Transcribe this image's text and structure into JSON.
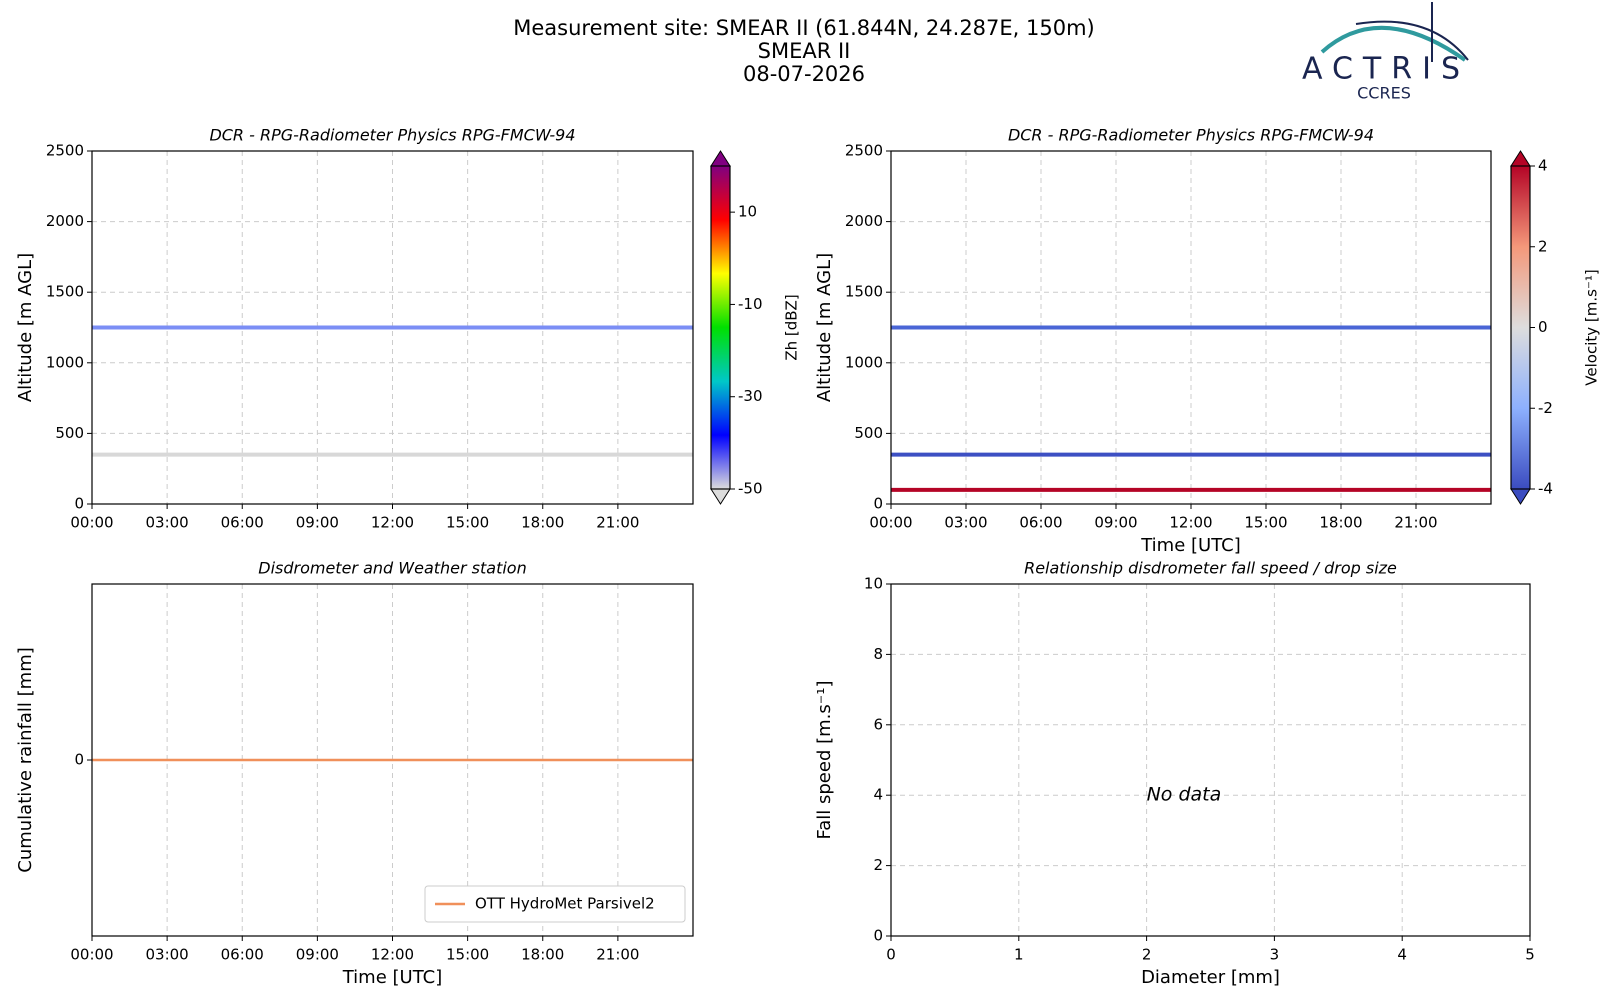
{
  "header": {
    "lines": [
      "Measurement site: SMEAR II (61.844N, 24.287E, 150m)",
      "SMEAR II",
      "08-07-2026"
    ]
  },
  "logo": {
    "name": "ACTRIS",
    "sub": "CCRES"
  },
  "chart_data": [
    {
      "type": "heatmap",
      "title": "DCR - RPG-Radiometer Physics RPG-FMCW-94",
      "ylabel": "Altitude [m AGL]",
      "xlim": [
        0,
        24
      ],
      "xticks": [
        {
          "value": 0,
          "label": "00:00"
        },
        {
          "value": 3,
          "label": "03:00"
        },
        {
          "value": 6,
          "label": "06:00"
        },
        {
          "value": 9,
          "label": "09:00"
        },
        {
          "value": 12,
          "label": "12:00"
        },
        {
          "value": 15,
          "label": "15:00"
        },
        {
          "value": 18,
          "label": "18:00"
        },
        {
          "value": 21,
          "label": "21:00"
        }
      ],
      "ylim": [
        0,
        2500
      ],
      "yticks": [
        0,
        500,
        1000,
        1500,
        2000,
        2500
      ],
      "grid": true,
      "layers": [
        {
          "y": 1250,
          "color": "#7b8ef5"
        },
        {
          "y": 350,
          "color": "#d8d8d8"
        }
      ],
      "colorbar": {
        "label": "Zh [dBZ]",
        "lim": [
          -50,
          20
        ],
        "ticks": [
          -50,
          -30,
          -10,
          10
        ],
        "colormap": [
          "#dcdcdc",
          "#0000ff",
          "#00c8c8",
          "#00e000",
          "#ffff00",
          "#ff0000",
          "#800080"
        ]
      }
    },
    {
      "type": "heatmap",
      "title": "DCR - RPG-Radiometer Physics RPG-FMCW-94",
      "ylabel": "Altitude [m AGL]",
      "xlabel": "Time [UTC]",
      "xlim": [
        0,
        24
      ],
      "xticks": [
        {
          "value": 0,
          "label": "00:00"
        },
        {
          "value": 3,
          "label": "03:00"
        },
        {
          "value": 6,
          "label": "06:00"
        },
        {
          "value": 9,
          "label": "09:00"
        },
        {
          "value": 12,
          "label": "12:00"
        },
        {
          "value": 15,
          "label": "15:00"
        },
        {
          "value": 18,
          "label": "18:00"
        },
        {
          "value": 21,
          "label": "21:00"
        }
      ],
      "ylim": [
        0,
        2500
      ],
      "yticks": [
        0,
        500,
        1000,
        1500,
        2000,
        2500
      ],
      "grid": true,
      "layers": [
        {
          "y": 1250,
          "color": "#4a66d6"
        },
        {
          "y": 350,
          "color": "#3d50c3"
        },
        {
          "y": 100,
          "color": "#b40426"
        }
      ],
      "colorbar": {
        "label": "Velocity [m.s⁻¹]",
        "lim": [
          -4,
          4
        ],
        "ticks": [
          -4,
          -2,
          0,
          2,
          4
        ],
        "colormap": [
          "#3b4cc0",
          "#8db0fe",
          "#dddddd",
          "#f4987a",
          "#b40426"
        ]
      }
    },
    {
      "type": "line",
      "title": "Disdrometer and Weather station",
      "ylabel": "Cumulative rainfall [mm]",
      "xlabel": "Time [UTC]",
      "xlim": [
        0,
        24
      ],
      "xticks": [
        {
          "value": 0,
          "label": "00:00"
        },
        {
          "value": 3,
          "label": "03:00"
        },
        {
          "value": 6,
          "label": "06:00"
        },
        {
          "value": 9,
          "label": "09:00"
        },
        {
          "value": 12,
          "label": "12:00"
        },
        {
          "value": 15,
          "label": "15:00"
        },
        {
          "value": 18,
          "label": "18:00"
        },
        {
          "value": 21,
          "label": "21:00"
        }
      ],
      "ylim": [
        -1,
        1
      ],
      "yticks": [
        0
      ],
      "grid": true,
      "legend": "lower right",
      "x": [
        0,
        24
      ],
      "series": [
        {
          "name": "OTT HydroMet Parsivel2",
          "color": "#f0905a",
          "values": [
            0,
            0
          ]
        }
      ]
    },
    {
      "type": "scatter",
      "title": "Relationship disdrometer fall speed / drop size",
      "ylabel": "Fall speed [m.s⁻¹]",
      "xlabel": "Diameter [mm]",
      "xlim": [
        0,
        5
      ],
      "xticks": [
        0,
        1,
        2,
        3,
        4,
        5
      ],
      "ylim": [
        0,
        10
      ],
      "yticks": [
        0,
        2,
        4,
        6,
        8,
        10
      ],
      "grid": true,
      "annotation": {
        "text": "No data",
        "x": 2,
        "y": 4
      }
    }
  ]
}
